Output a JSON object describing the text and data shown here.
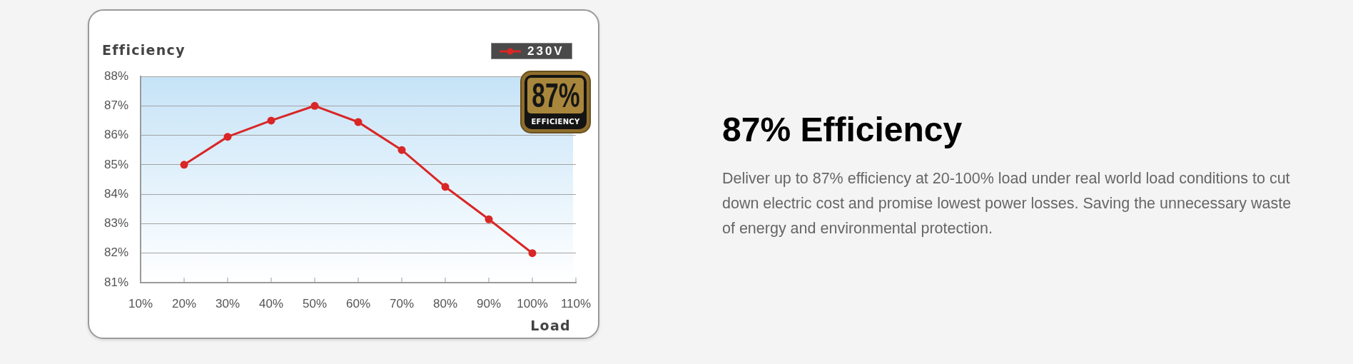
{
  "chart_data": {
    "type": "line",
    "title": "87% Efficiency",
    "subtitle": "Deliver up to 87% efficiency at 20-100% load under real world load conditions to cut down electric cost and promise lowest power losses. Saving the unnecessary waste of energy and environmental protection.",
    "xlabel": "Load",
    "ylabel": "Efficiency",
    "annotations": [
      "87%",
      "EFFICIENCY"
    ],
    "x": [
      20,
      30,
      40,
      50,
      60,
      70,
      80,
      90,
      100
    ],
    "series": [
      {
        "name": "230V",
        "color": "#d92626",
        "values": [
          85.0,
          85.95,
          86.5,
          87.0,
          86.45,
          85.5,
          84.25,
          83.15,
          82.0
        ]
      }
    ],
    "xlim": [
      10,
      110
    ],
    "xticks": [
      {
        "value": 10,
        "label": "10%"
      },
      {
        "value": 20,
        "label": "20%"
      },
      {
        "value": 30,
        "label": "30%"
      },
      {
        "value": 40,
        "label": "40%"
      },
      {
        "value": 50,
        "label": "50%"
      },
      {
        "value": 60,
        "label": "60%"
      },
      {
        "value": 70,
        "label": "70%"
      },
      {
        "value": 80,
        "label": "80%"
      },
      {
        "value": 90,
        "label": "90%"
      },
      {
        "value": 100,
        "label": "100%"
      },
      {
        "value": 110,
        "label": "110%"
      }
    ],
    "ylim": [
      81,
      88
    ],
    "yticks": [
      {
        "value": 81,
        "label": "81%"
      },
      {
        "value": 82,
        "label": "82%"
      },
      {
        "value": 83,
        "label": "83%"
      },
      {
        "value": 84,
        "label": "84%"
      },
      {
        "value": 85,
        "label": "85%"
      },
      {
        "value": 86,
        "label": "86%"
      },
      {
        "value": 87,
        "label": "87%"
      },
      {
        "value": 88,
        "label": "88%"
      }
    ],
    "grid": "y",
    "legend": "top right",
    "marker": "circle",
    "line_style": "solid"
  }
}
